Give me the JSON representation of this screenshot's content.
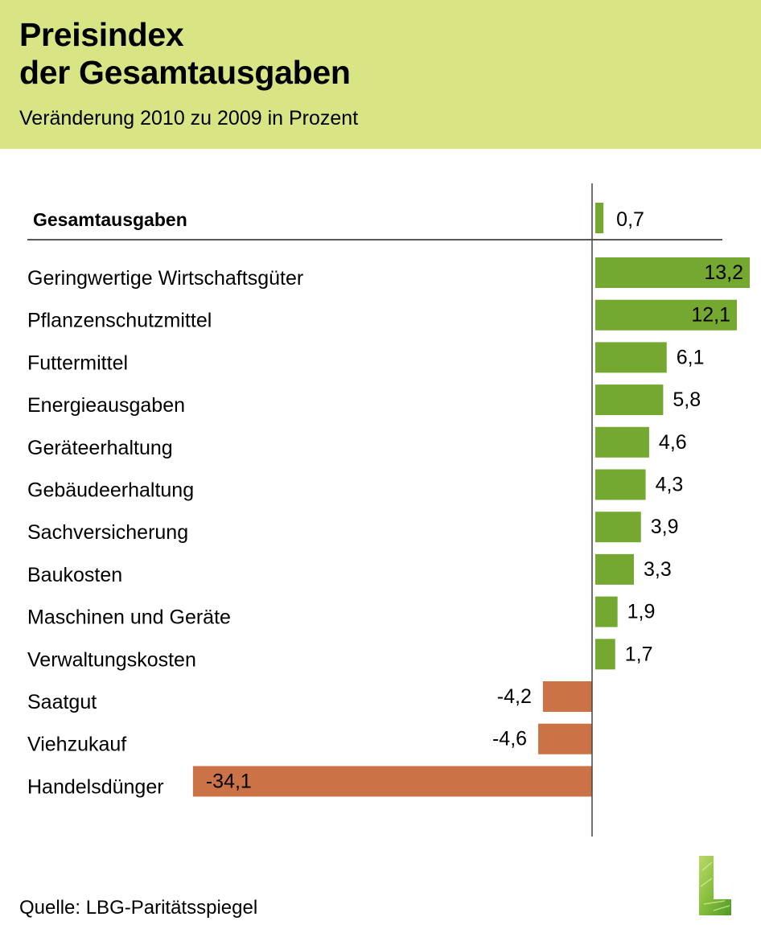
{
  "header": {
    "title_line1": "Preisindex",
    "title_line2": "der Gesamtausgaben",
    "subtitle": "Veränderung 2010 zu 2009 in Prozent"
  },
  "source": "Quelle: LBG-Paritätsspiegel",
  "logo": {
    "letter": "L"
  },
  "colors": {
    "header_bg": "#d9e585",
    "positive": "#74a830",
    "negative": "#cb7346",
    "axis": "#333333"
  },
  "chart_data": {
    "type": "bar",
    "orientation": "horizontal",
    "title": "Preisindex der Gesamtausgaben",
    "subtitle": "Veränderung 2010 zu 2009 in Prozent",
    "xlabel": "",
    "ylabel": "",
    "xlim": [
      -34.1,
      13.2
    ],
    "grid": false,
    "total": {
      "category": "Gesamtausgaben",
      "value": 0.7,
      "label": "0,7"
    },
    "categories": [
      "Geringwertige Wirtschaftsgüter",
      "Pflanzenschutzmittel",
      "Futtermittel",
      "Energieausgaben",
      "Geräteerhaltung",
      "Gebäudeerhaltung",
      "Sachversicherung",
      "Baukosten",
      "Maschinen und Geräte",
      "Verwaltungskosten",
      "Saatgut",
      "Viehzukauf",
      "Handelsdünger"
    ],
    "values": [
      13.2,
      12.1,
      6.1,
      5.8,
      4.6,
      4.3,
      3.9,
      3.3,
      1.9,
      1.7,
      -4.2,
      -4.6,
      -34.1
    ],
    "value_labels": [
      "13,2",
      "12,1",
      "6,1",
      "5,8",
      "4,6",
      "4,3",
      "3,9",
      "3,3",
      "1,9",
      "1,7",
      "-4,2",
      "-4,6",
      "-34,1"
    ]
  }
}
